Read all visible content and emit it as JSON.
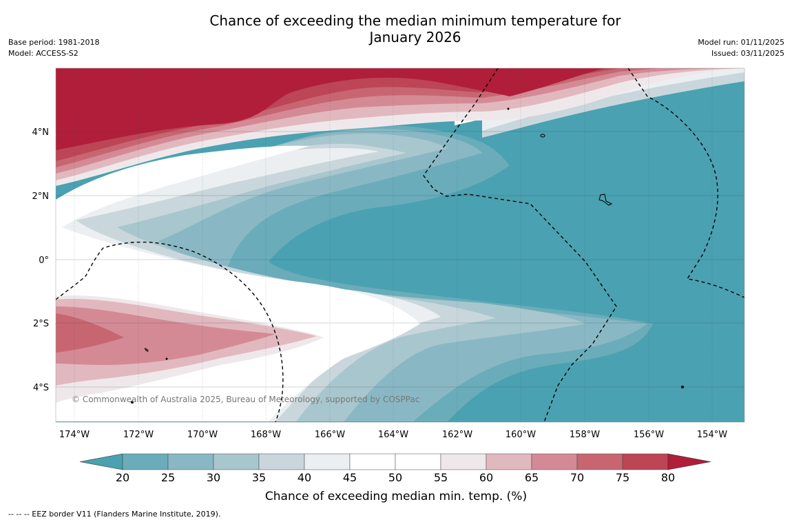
{
  "title_line1": "Chance of exceeding the median minimum temperature for",
  "title_line2": "January 2026",
  "base_period": "Base period: 1981-2018",
  "model": "Model: ACCESS-S2",
  "model_run": "Model run: 01/11/2025",
  "issued": "Issued: 03/11/2025",
  "copyright": "© Commonwealth of Australia 2025, Bureau of Meteorology, supported by COSPPac",
  "footnote": "--  --  -- EEZ border V11 (Flanders Marine Institute, 2019).",
  "colorbar": {
    "label": "Chance of exceeding median min. temp. (%)",
    "ticks": [
      "20",
      "25",
      "30",
      "35",
      "40",
      "45",
      "50",
      "55",
      "60",
      "65",
      "70",
      "75",
      "80"
    ],
    "colors": [
      "#4aa1b1",
      "#6aacba",
      "#89b8c4",
      "#a8c6cd",
      "#c9d7dc",
      "#ebeff1",
      "#ffffff",
      "#ffffff",
      "#efe8ea",
      "#e2b8bf",
      "#d48a95",
      "#c76671",
      "#bc4556",
      "#b01e3a"
    ]
  },
  "map": {
    "lat_labels": [
      "4°N",
      "2°N",
      "0°",
      "2°S",
      "4°S"
    ],
    "lon_labels": [
      "174°W",
      "172°W",
      "170°W",
      "168°W",
      "166°W",
      "164°W",
      "162°W",
      "160°W",
      "158°W",
      "156°W",
      "154°W"
    ]
  }
}
